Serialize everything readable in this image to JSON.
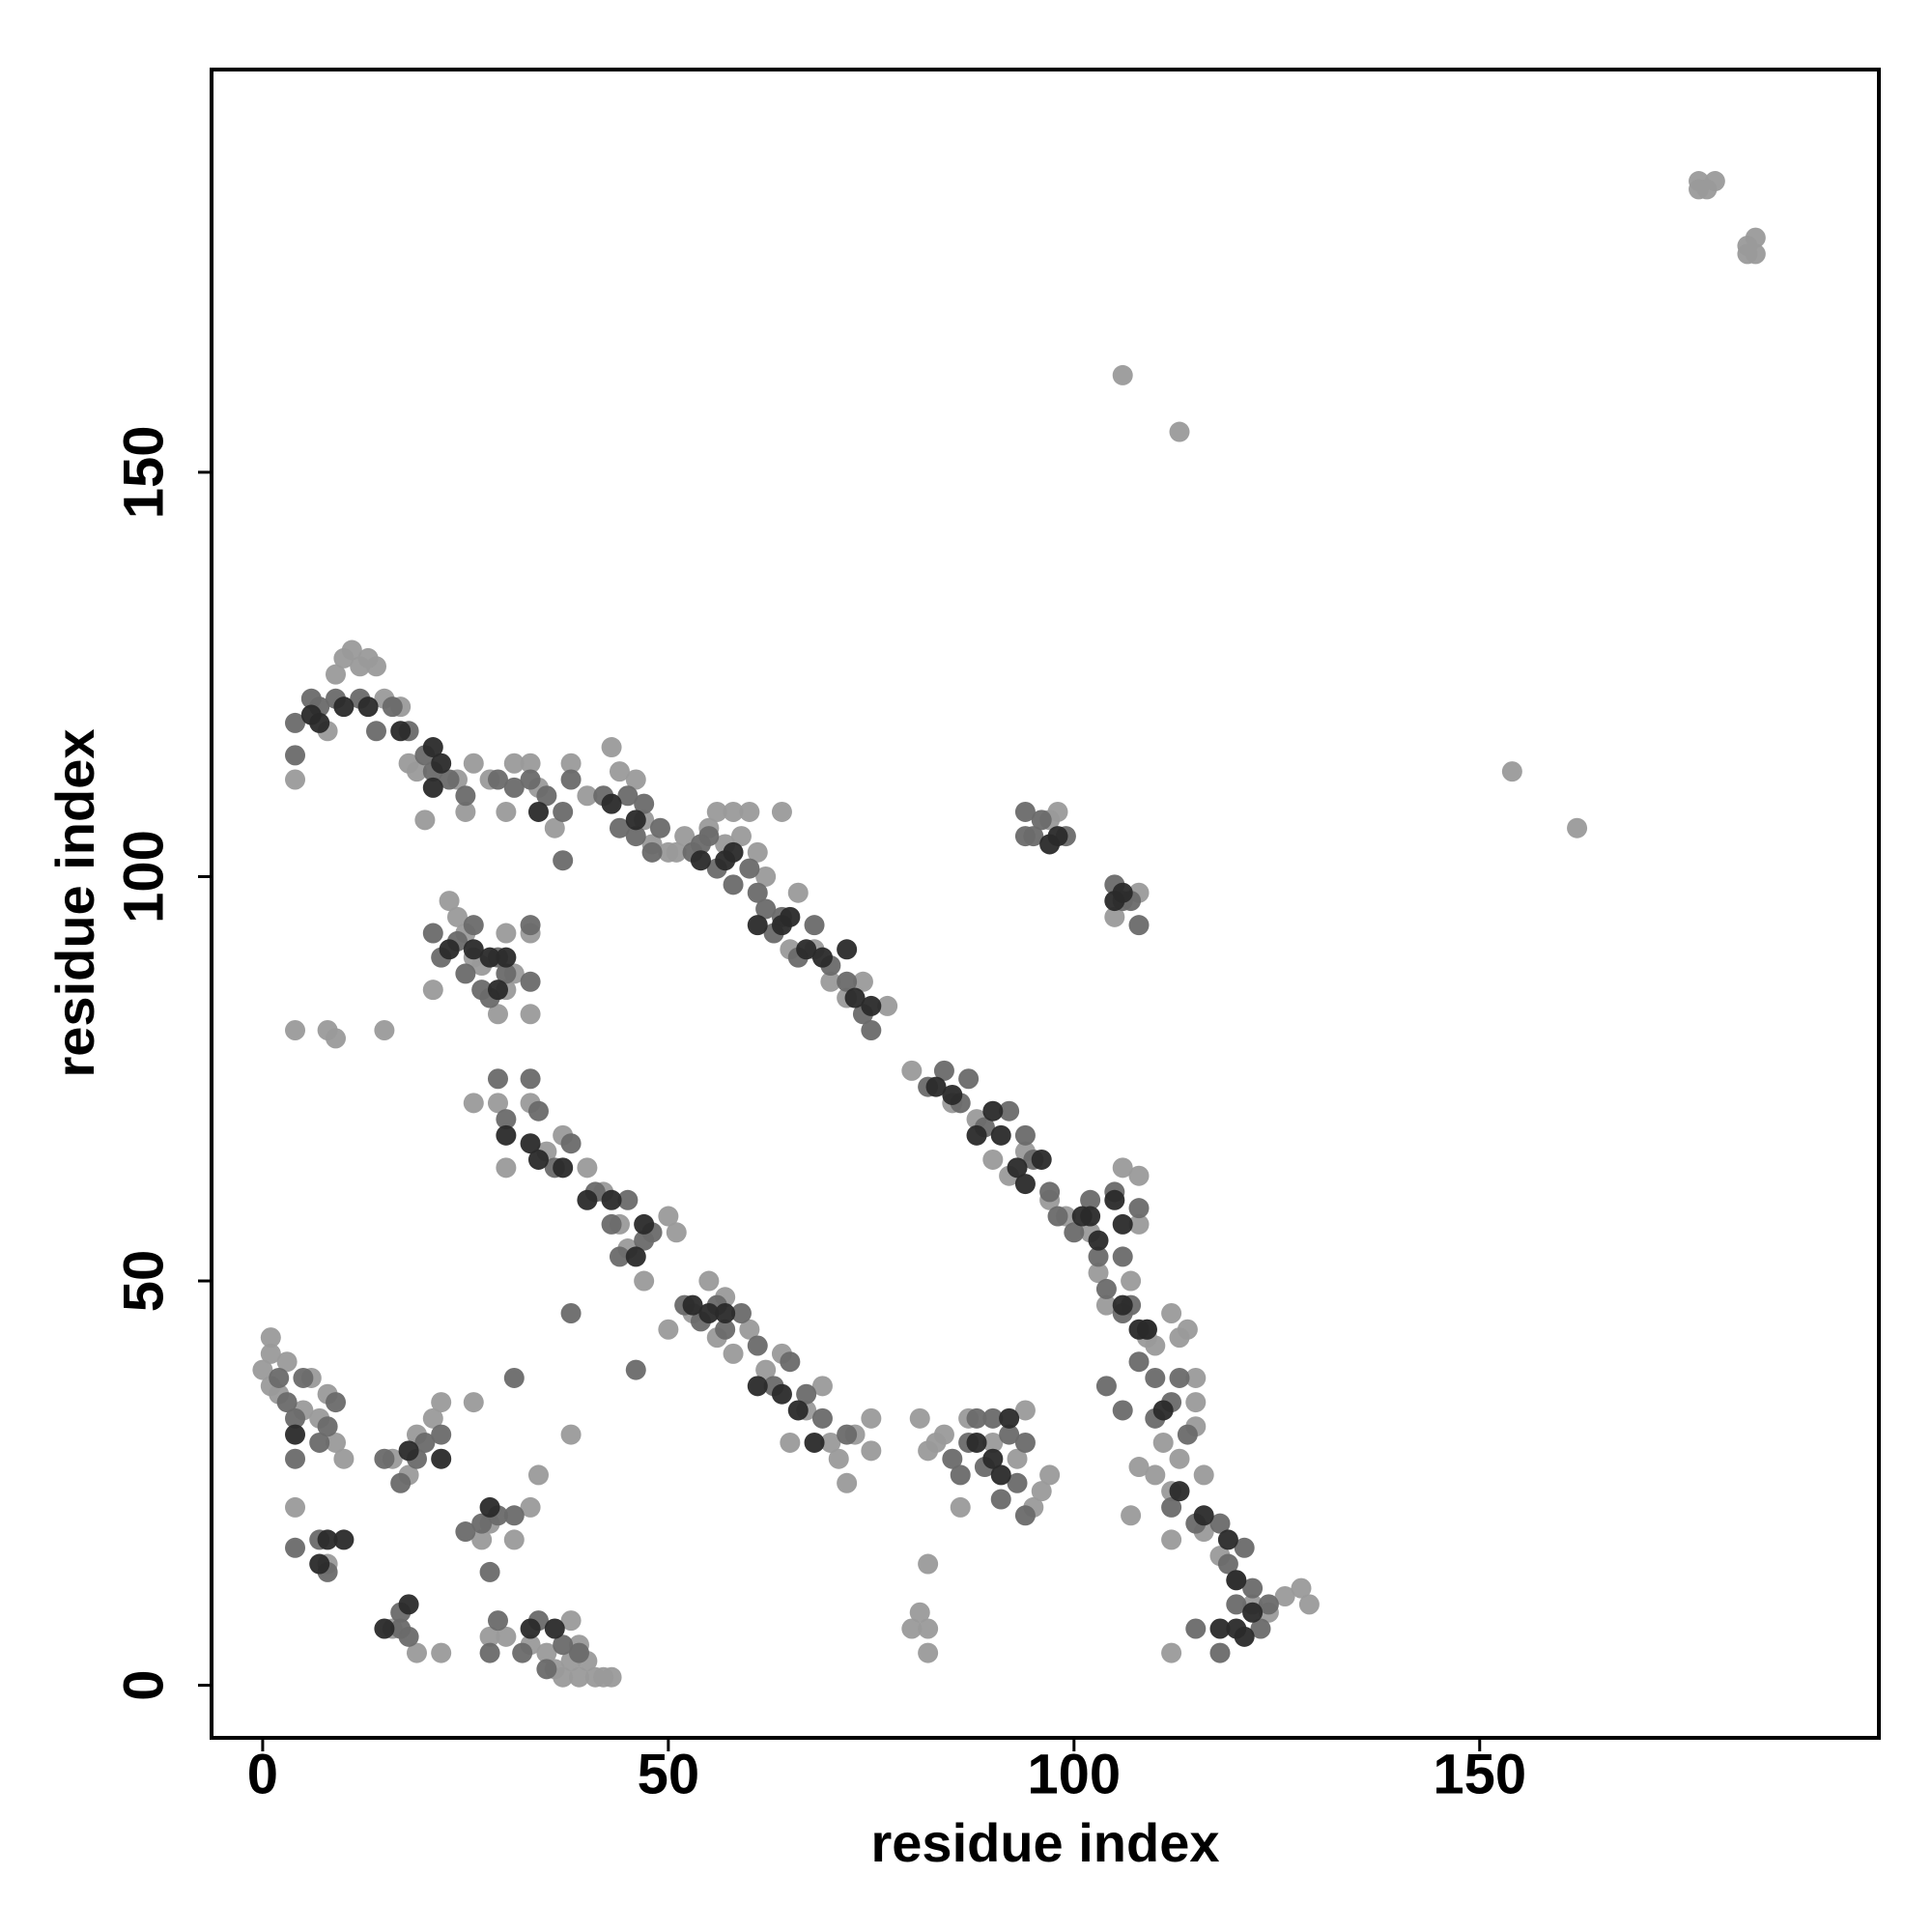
{
  "chart_data": {
    "type": "scatter",
    "xlabel": "residue index",
    "ylabel": "residue index",
    "xlim": [
      -6.3,
      199.2
    ],
    "ylim": [
      -6.5,
      199.8
    ],
    "xticks": [
      0,
      50,
      100,
      150
    ],
    "yticks": [
      0,
      50,
      100,
      150
    ],
    "series": [
      {
        "color": "#9a9a9a",
        "x": [
          177,
          178,
          179,
          177,
          183,
          184,
          183,
          184,
          106,
          113,
          154,
          162,
          4,
          8,
          9,
          10,
          11,
          12,
          13,
          14,
          15,
          17,
          18,
          19,
          20,
          24,
          25,
          26,
          28,
          30,
          31,
          33,
          34,
          36,
          38,
          40,
          8,
          9,
          15,
          4,
          43,
          44,
          46,
          47,
          48,
          50,
          51,
          52,
          55,
          56,
          57,
          58,
          59,
          60,
          61,
          62,
          64,
          65,
          66,
          68,
          70,
          72,
          74,
          77,
          21,
          23,
          24,
          25,
          26,
          27,
          29,
          30,
          31,
          33,
          33,
          30,
          80,
          85,
          88,
          90,
          92,
          94,
          97,
          99,
          102,
          103,
          104,
          106,
          108,
          108,
          107,
          109,
          110,
          112,
          113,
          114,
          115,
          115,
          111,
          110,
          108,
          107,
          112,
          113,
          116,
          116,
          118,
          120,
          122,
          124,
          126,
          128,
          129,
          112,
          112,
          115,
          108,
          105,
          98,
          97,
          26,
          29,
          30,
          33,
          35,
          37,
          40,
          42,
          44,
          45,
          47,
          50,
          51,
          50,
          53,
          55,
          56,
          57,
          58,
          60,
          62,
          64,
          65,
          67,
          69,
          70,
          71,
          72,
          73,
          75,
          75,
          1,
          1,
          0,
          1,
          2,
          3,
          5,
          6,
          7,
          8,
          9,
          10,
          4,
          8,
          16,
          18,
          19,
          21,
          22,
          26,
          27,
          28,
          31,
          33,
          34,
          38,
          28,
          30,
          33,
          35,
          36,
          38,
          39,
          40,
          41,
          42,
          43,
          37,
          39,
          38,
          19,
          22,
          16,
          81,
          82,
          83,
          84,
          86,
          87,
          90,
          93,
          94,
          95,
          96,
          97,
          82,
          81,
          82,
          82,
          80
        ],
        "values": [
          185,
          185,
          186,
          186,
          178,
          179,
          177,
          177,
          162,
          155,
          113,
          106,
          112,
          118,
          125,
          127,
          128,
          126,
          127,
          126,
          122,
          121,
          114,
          113,
          107,
          112,
          108,
          114,
          112,
          108,
          114,
          114,
          111,
          106,
          114,
          110,
          81,
          80,
          81,
          81,
          116,
          113,
          112,
          107,
          104,
          103,
          103,
          105,
          106,
          108,
          104,
          108,
          105,
          108,
          103,
          100,
          108,
          91,
          98,
          91,
          87,
          85,
          87,
          84,
          86,
          97,
          95,
          93,
          90,
          89,
          83,
          86,
          88,
          93,
          83,
          93,
          76,
          72,
          70,
          65,
          63,
          66,
          60,
          58,
          56,
          51,
          47,
          64,
          63,
          57,
          50,
          43,
          42,
          46,
          43,
          44,
          38,
          32,
          30,
          26,
          27,
          21,
          24,
          28,
          26,
          19,
          16,
          13,
          10,
          9,
          11,
          12,
          10,
          18,
          4,
          35,
          98,
          95,
          108,
          107,
          72,
          72,
          64,
          72,
          66,
          68,
          64,
          61,
          57,
          54,
          50,
          58,
          56,
          44,
          46,
          50,
          43,
          48,
          41,
          44,
          39,
          41,
          30,
          34,
          37,
          30,
          28,
          25,
          31,
          33,
          29,
          43,
          41,
          39,
          37,
          36,
          40,
          34,
          38,
          33,
          36,
          30,
          28,
          22,
          15,
          28,
          26,
          31,
          33,
          35,
          35,
          18,
          20,
          18,
          22,
          26,
          31,
          6,
          6,
          5,
          4,
          2,
          8,
          5,
          3,
          1,
          1,
          1,
          1,
          1,
          3,
          4,
          4,
          7,
          33,
          29,
          30,
          31,
          22,
          33,
          30,
          28,
          34,
          22,
          24,
          26,
          15,
          9,
          7,
          4,
          7
        ]
      },
      {
        "color": "#6a6a6a",
        "x": [
          4,
          4,
          6,
          7,
          9,
          12,
          14,
          16,
          18,
          20,
          21,
          23,
          25,
          29,
          31,
          33,
          35,
          37,
          38,
          37,
          42,
          44,
          45,
          46,
          47,
          48,
          49,
          53,
          55,
          56,
          58,
          60,
          61,
          62,
          64,
          66,
          68,
          70,
          72,
          74,
          75,
          54,
          63,
          21,
          22,
          24,
          25,
          27,
          29,
          30,
          33,
          33,
          26,
          28,
          82,
          84,
          86,
          87,
          89,
          92,
          94,
          95,
          97,
          98,
          100,
          102,
          103,
          104,
          105,
          106,
          108,
          107,
          109,
          110,
          110,
          112,
          113,
          114,
          112,
          115,
          118,
          119,
          120,
          121,
          122,
          123,
          124,
          115,
          118,
          106,
          104,
          106,
          108,
          106,
          107,
          108,
          105,
          94,
          95,
          96,
          94,
          99,
          29,
          30,
          33,
          34,
          36,
          38,
          41,
          43,
          44,
          45,
          47,
          48,
          52,
          54,
          56,
          57,
          59,
          61,
          63,
          65,
          67,
          69,
          72,
          38,
          46,
          31,
          2,
          3,
          4,
          5,
          7,
          8,
          4,
          9,
          4,
          7,
          8,
          15,
          17,
          19,
          20,
          22,
          25,
          27,
          28,
          29,
          31,
          28,
          29,
          32,
          34,
          35,
          37,
          39,
          17,
          18,
          17,
          85,
          86,
          88,
          89,
          90,
          91,
          92,
          93,
          94,
          94,
          87
        ],
        "values": [
          119,
          115,
          122,
          121,
          122,
          122,
          118,
          121,
          118,
          115,
          113,
          112,
          110,
          112,
          111,
          112,
          110,
          108,
          112,
          102,
          110,
          106,
          110,
          105,
          109,
          103,
          106,
          103,
          105,
          101,
          99,
          101,
          98,
          96,
          95,
          90,
          94,
          89,
          87,
          83,
          81,
          104,
          93,
          93,
          90,
          92,
          88,
          86,
          90,
          88,
          87,
          94,
          94,
          85,
          74,
          76,
          72,
          75,
          69,
          71,
          68,
          65,
          61,
          58,
          56,
          60,
          53,
          49,
          61,
          53,
          59,
          47,
          44,
          38,
          33,
          35,
          38,
          31,
          22,
          20,
          20,
          15,
          10,
          17,
          12,
          7,
          10,
          7,
          4,
          46,
          37,
          34,
          40,
          97,
          97,
          94,
          99,
          105,
          105,
          107,
          108,
          105,
          75,
          70,
          75,
          71,
          64,
          67,
          61,
          57,
          53,
          60,
          55,
          56,
          47,
          45,
          47,
          44,
          46,
          42,
          37,
          40,
          36,
          33,
          31,
          46,
          39,
          38,
          38,
          35,
          33,
          38,
          30,
          32,
          28,
          35,
          17,
          18,
          14,
          28,
          25,
          28,
          30,
          31,
          19,
          20,
          14,
          21,
          21,
          4,
          8,
          4,
          8,
          2,
          5,
          4,
          9,
          6,
          7,
          28,
          26,
          33,
          27,
          33,
          23,
          31,
          25,
          21,
          30,
          30
        ]
      },
      {
        "color": "#2a2a2a",
        "x": [
          6,
          7,
          10,
          13,
          17,
          21,
          21,
          22,
          34,
          43,
          46,
          54,
          57,
          58,
          61,
          64,
          65,
          67,
          69,
          72,
          73,
          75,
          23,
          26,
          28,
          29,
          30,
          83,
          85,
          88,
          90,
          91,
          93,
          94,
          96,
          101,
          102,
          103,
          105,
          106,
          106,
          108,
          109,
          111,
          113,
          116,
          119,
          120,
          120,
          118,
          121,
          122,
          105,
          106,
          97,
          98,
          30,
          33,
          34,
          37,
          40,
          43,
          46,
          47,
          53,
          55,
          57,
          61,
          64,
          66,
          68,
          4,
          7,
          8,
          10,
          18,
          22,
          18,
          15,
          28,
          33,
          36,
          88,
          90,
          91,
          92
        ],
        "values": [
          120,
          119,
          121,
          121,
          118,
          116,
          111,
          114,
          108,
          109,
          107,
          102,
          102,
          103,
          94,
          94,
          95,
          91,
          90,
          91,
          85,
          84,
          91,
          91,
          90,
          86,
          90,
          74,
          73,
          68,
          71,
          68,
          64,
          62,
          65,
          58,
          58,
          55,
          60,
          57,
          47,
          44,
          44,
          34,
          24,
          21,
          18,
          13,
          7,
          7,
          6,
          9,
          97,
          98,
          104,
          105,
          68,
          67,
          65,
          64,
          60,
          60,
          53,
          57,
          47,
          46,
          46,
          37,
          36,
          34,
          30,
          31,
          15,
          18,
          18,
          29,
          28,
          10,
          7,
          22,
          7,
          7,
          30,
          28,
          26,
          33
        ]
      }
    ]
  }
}
